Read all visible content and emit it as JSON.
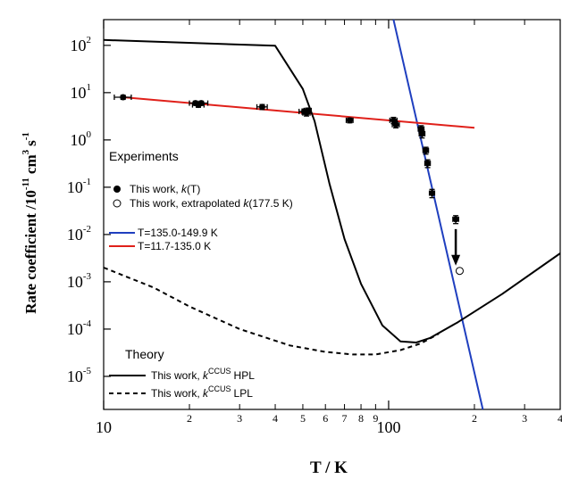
{
  "chart_data": {
    "type": "scatter",
    "title": "",
    "xlabel": "T / K",
    "ylabel_main": "Rate coefficient /10",
    "ylabel_sup1": "-11",
    "ylabel_mid": "cm",
    "ylabel_sup2": "3",
    "ylabel_end": "s",
    "ylabel_sup3": "-1",
    "xscale": "log",
    "yscale": "log",
    "xlim": [
      10,
      400
    ],
    "ylim": [
      2e-06,
      350
    ],
    "x_major_ticks": [
      {
        "value": 10,
        "label": "10"
      },
      {
        "value": 100,
        "label": "100"
      }
    ],
    "x_minor_ticks": [
      {
        "value": 20,
        "label": "2"
      },
      {
        "value": 30,
        "label": "3"
      },
      {
        "value": 40,
        "label": "4"
      },
      {
        "value": 50,
        "label": "5"
      },
      {
        "value": 60,
        "label": "6"
      },
      {
        "value": 70,
        "label": "7"
      },
      {
        "value": 80,
        "label": "8"
      },
      {
        "value": 90,
        "label": "9"
      },
      {
        "value": 200,
        "label": "2"
      },
      {
        "value": 300,
        "label": "3"
      },
      {
        "value": 400,
        "label": "4"
      }
    ],
    "y_ticks": [
      {
        "value": 100,
        "base": "10",
        "exp": "2"
      },
      {
        "value": 10,
        "base": "10",
        "exp": "1"
      },
      {
        "value": 1,
        "base": "10",
        "exp": "0"
      },
      {
        "value": 0.1,
        "base": "10",
        "exp": "-1"
      },
      {
        "value": 0.01,
        "base": "10",
        "exp": "-2"
      },
      {
        "value": 0.001,
        "base": "10",
        "exp": "-3"
      },
      {
        "value": 0.0001,
        "base": "10",
        "exp": "-4"
      },
      {
        "value": 1e-05,
        "base": "10",
        "exp": "-5"
      }
    ],
    "series": [
      {
        "name": "This work, k(T)",
        "kind": "points-filled",
        "points": [
          {
            "x": 11.7,
            "y": 8.0,
            "xerr": 0.8,
            "yerr": 0.8
          },
          {
            "x": 21.0,
            "y": 6.0,
            "xerr": 1.0,
            "yerr": 0.6
          },
          {
            "x": 21.5,
            "y": 5.5,
            "xerr": 1.0,
            "yerr": 0.6
          },
          {
            "x": 22.0,
            "y": 6.0,
            "xerr": 1.2,
            "yerr": 0.6
          },
          {
            "x": 36.0,
            "y": 5.0,
            "xerr": 1.5,
            "yerr": 0.6
          },
          {
            "x": 50.5,
            "y": 4.0,
            "xerr": 2.0,
            "yerr": 0.5
          },
          {
            "x": 51.5,
            "y": 3.7,
            "xerr": 1.5,
            "yerr": 0.5
          },
          {
            "x": 52.0,
            "y": 4.2,
            "xerr": 1.5,
            "yerr": 0.5
          },
          {
            "x": 73.0,
            "y": 2.6,
            "xerr": 2.0,
            "yerr": 0.3
          },
          {
            "x": 104.0,
            "y": 2.6,
            "xerr": 3.0,
            "yerr": 0.4
          },
          {
            "x": 106.0,
            "y": 2.1,
            "xerr": 3.0,
            "yerr": 0.3
          },
          {
            "x": 130.0,
            "y": 1.7,
            "xerr": 3.0,
            "yerr": 0.3
          },
          {
            "x": 131.0,
            "y": 1.35,
            "xerr": 3.0,
            "yerr": 0.25
          },
          {
            "x": 135.0,
            "y": 0.6,
            "xerr": 3.0,
            "yerr": 0.1
          },
          {
            "x": 137.0,
            "y": 0.32,
            "xerr": 3.0,
            "yerr": 0.06
          },
          {
            "x": 142.0,
            "y": 0.075,
            "xerr": 3.0,
            "yerr": 0.015
          },
          {
            "x": 172.0,
            "y": 0.021,
            "xerr": 4.0,
            "yerr": 0.004
          }
        ]
      },
      {
        "name": "This work, extrapolated k(177.5 K)",
        "kind": "points-open",
        "points": [
          {
            "x": 177.5,
            "y": 0.0017
          }
        ]
      },
      {
        "name": "T=135.0-149.9 K",
        "kind": "line",
        "color": "#1f3fbf",
        "points": [
          {
            "x": 104,
            "y": 350
          },
          {
            "x": 214,
            "y": 2e-06
          }
        ]
      },
      {
        "name": "T=11.7-135.0 K",
        "kind": "line",
        "color": "#e0201a",
        "points": [
          {
            "x": 11.7,
            "y": 8.0
          },
          {
            "x": 200,
            "y": 1.8
          }
        ]
      },
      {
        "name": "This work, kCCUS HPL",
        "kind": "line",
        "color": "#000000",
        "dash": "solid",
        "points": [
          {
            "x": 10,
            "y": 130
          },
          {
            "x": 40,
            "y": 98
          },
          {
            "x": 50,
            "y": 12
          },
          {
            "x": 55,
            "y": 2.5
          },
          {
            "x": 62,
            "y": 0.12
          },
          {
            "x": 70,
            "y": 0.008
          },
          {
            "x": 80,
            "y": 0.0009
          },
          {
            "x": 95,
            "y": 0.00012
          },
          {
            "x": 110,
            "y": 5.5e-05
          },
          {
            "x": 125,
            "y": 5.2e-05
          },
          {
            "x": 140,
            "y": 6.5e-05
          },
          {
            "x": 175,
            "y": 0.00014
          },
          {
            "x": 250,
            "y": 0.00055
          },
          {
            "x": 400,
            "y": 0.004
          }
        ]
      },
      {
        "name": "This work, kCCUS LPL",
        "kind": "line",
        "color": "#000000",
        "dash": "dashed",
        "points": [
          {
            "x": 10,
            "y": 0.002
          },
          {
            "x": 15,
            "y": 0.00075
          },
          {
            "x": 20,
            "y": 0.0003
          },
          {
            "x": 30,
            "y": 0.0001
          },
          {
            "x": 45,
            "y": 4.5e-05
          },
          {
            "x": 60,
            "y": 3.3e-05
          },
          {
            "x": 75,
            "y": 2.9e-05
          },
          {
            "x": 90,
            "y": 2.9e-05
          },
          {
            "x": 110,
            "y": 3.6e-05
          },
          {
            "x": 130,
            "y": 5e-05
          },
          {
            "x": 150,
            "y": 8e-05
          }
        ]
      }
    ],
    "annotation_arrow": {
      "x": 172,
      "y_from": 0.013,
      "y_to": 0.0022
    },
    "legend_experiments": {
      "heading": "Experiments",
      "item1_prefix": "This work, ",
      "item1_k": "k",
      "item1_suffix": "(T)",
      "item2_prefix": "This work, extrapolated ",
      "item2_k": "k",
      "item2_suffix": "(177.5 K)"
    },
    "legend_fits": {
      "item1": "T=135.0-149.9 K",
      "item2": "T=11.7-135.0 K"
    },
    "legend_theory": {
      "heading": "Theory",
      "prefix": "This work, ",
      "k": "k",
      "sup": "CCUS",
      "hpl": "HPL",
      "lpl": "LPL"
    }
  }
}
